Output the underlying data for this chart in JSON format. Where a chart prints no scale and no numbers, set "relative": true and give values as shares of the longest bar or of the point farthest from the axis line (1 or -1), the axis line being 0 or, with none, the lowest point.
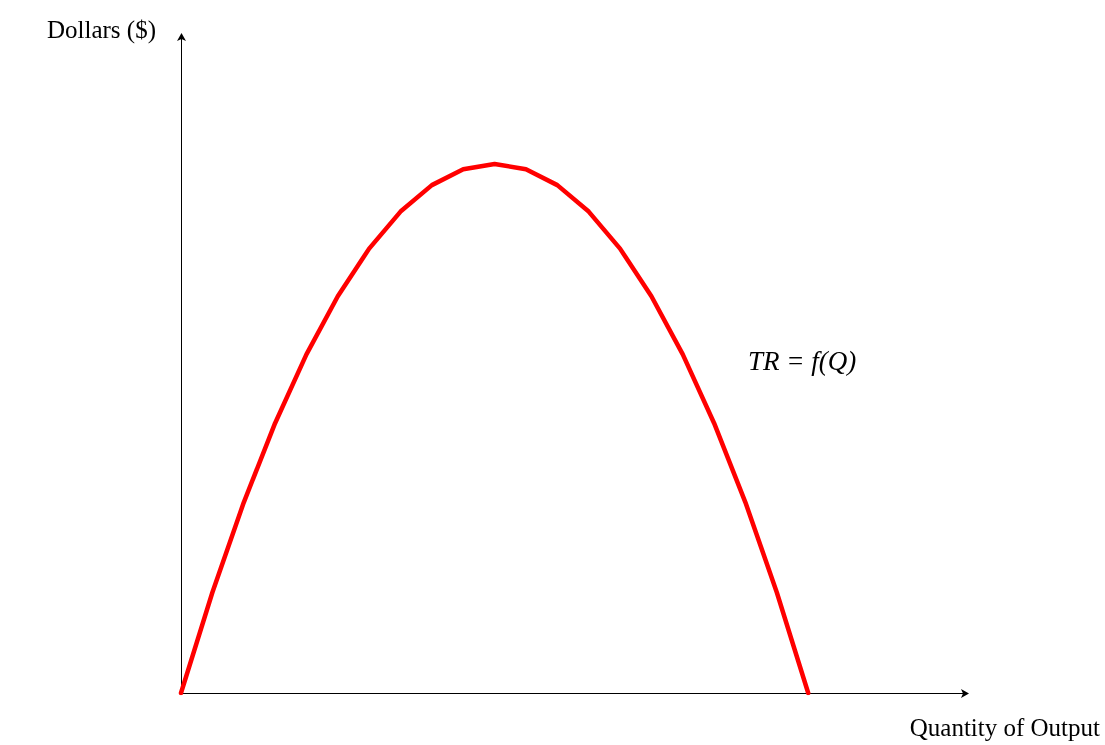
{
  "chart_data": {
    "type": "line",
    "relative": true,
    "xlabel": "Quantity of Output",
    "ylabel": "Dollars ($)",
    "annotations": [
      "TR = f(Q)"
    ],
    "categories": [
      null,
      null,
      null,
      null,
      null,
      null,
      null,
      null,
      null,
      null,
      null,
      null,
      null,
      null,
      null,
      null,
      null,
      null,
      null,
      null,
      null,
      null,
      null,
      null,
      null,
      null
    ],
    "series": [
      {
        "color": "#ff0000",
        "values": [
          0,
          0.19,
          0.36,
          0.51,
          0.64,
          0.75,
          0.84,
          0.91,
          0.96,
          0.99,
          1,
          0.99,
          0.96,
          0.91,
          0.84,
          0.75,
          0.64,
          0.51,
          0.36,
          0.19,
          0,
          null,
          null,
          null,
          null,
          null
        ]
      }
    ],
    "marker": "none",
    "line_style": "solid",
    "grid": false
  }
}
